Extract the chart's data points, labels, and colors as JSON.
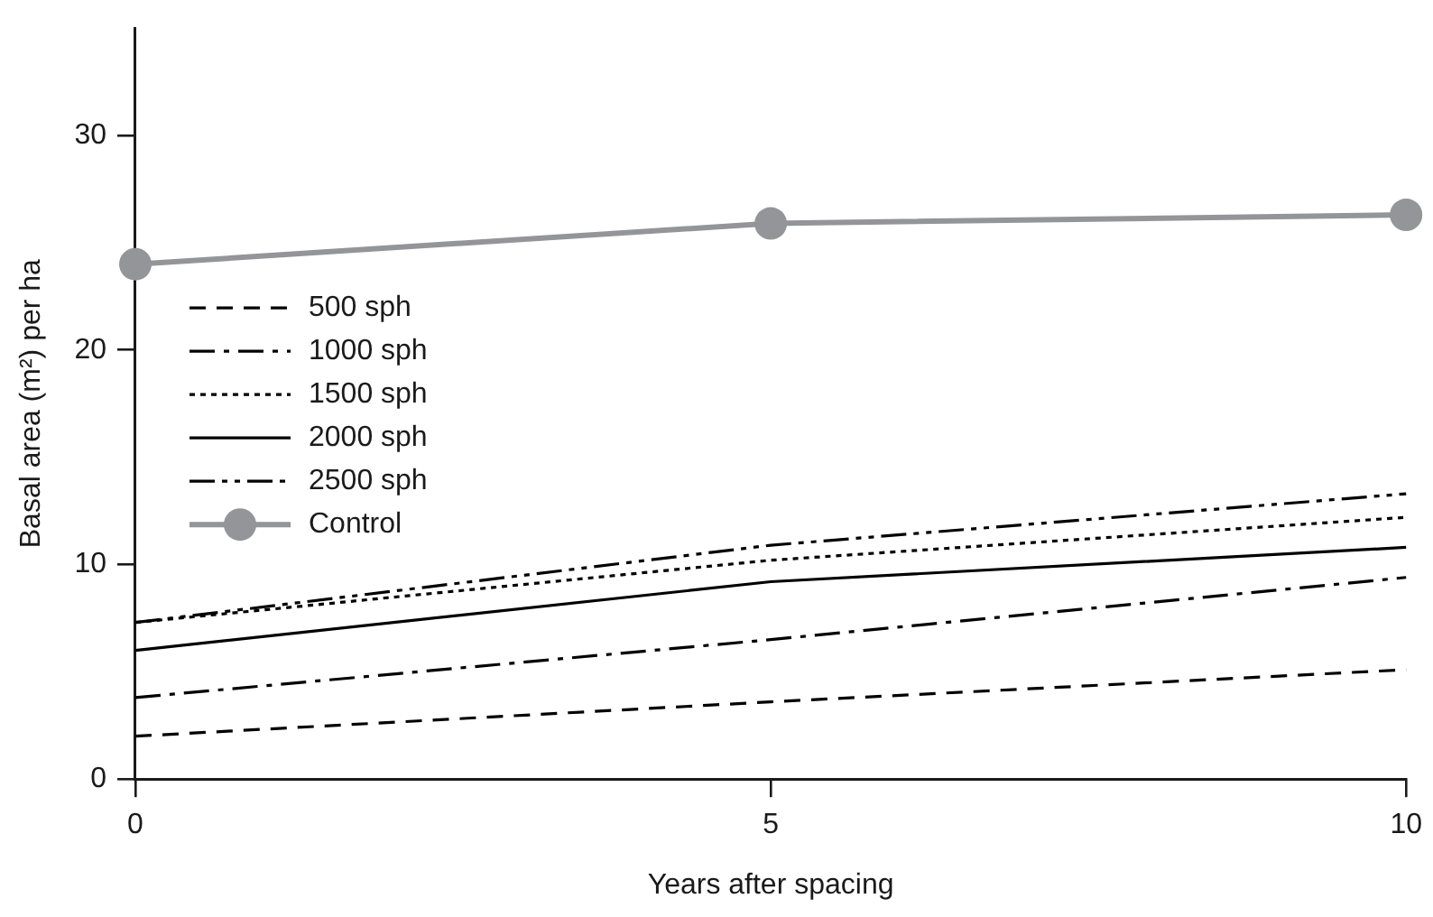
{
  "chart_data": {
    "type": "line",
    "xlabel": "Years after spacing",
    "ylabel": "Basal area (m²) per ha",
    "x": [
      0,
      5,
      10
    ],
    "xlim": [
      0,
      10
    ],
    "xticks": [
      0,
      5,
      10
    ],
    "ylim": [
      0,
      35
    ],
    "yticks": [
      0,
      10,
      20,
      30
    ],
    "grid": false,
    "legend": "left",
    "series": [
      {
        "name": "500 sph",
        "color": "#000000",
        "line_style": "dashed",
        "marker": "none",
        "values": [
          2.0,
          3.6,
          5.1
        ]
      },
      {
        "name": "1000 sph",
        "color": "#000000",
        "line_style": "dashdot",
        "marker": "none",
        "values": [
          3.8,
          6.5,
          9.4
        ]
      },
      {
        "name": "1500 sph",
        "color": "#000000",
        "line_style": "dotted",
        "marker": "none",
        "values": [
          7.3,
          10.2,
          12.2
        ]
      },
      {
        "name": "2000 sph",
        "color": "#000000",
        "line_style": "solid",
        "marker": "none",
        "values": [
          6.0,
          9.2,
          10.8
        ]
      },
      {
        "name": "2500 sph",
        "color": "#000000",
        "line_style": "dashdotdot",
        "marker": "none",
        "values": [
          7.3,
          10.9,
          13.3
        ]
      },
      {
        "name": "Control",
        "color": "#939598",
        "line_style": "solid",
        "marker": "circle",
        "values": [
          24.0,
          25.9,
          26.3
        ]
      }
    ]
  }
}
